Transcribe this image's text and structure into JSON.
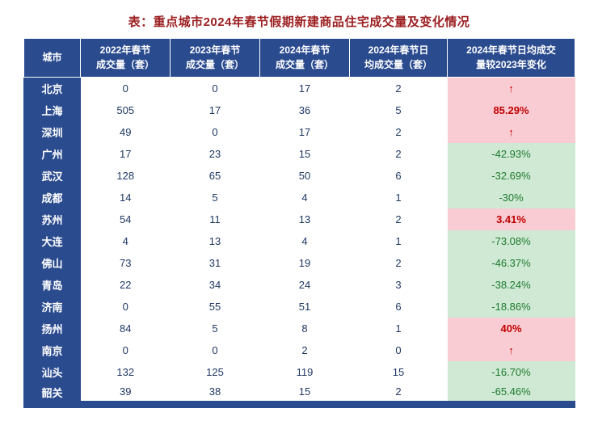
{
  "title": "表：重点城市2024年春节假期新建商品住宅成交量及变化情况",
  "colors": {
    "header_bg": "#2b4b8f",
    "pink_bg": "#f9ccd3",
    "green_bg": "#cfe9d4",
    "red_text": "#c00000",
    "green_text": "#1e7a2e",
    "data_text": "#1f3864",
    "title_color": "#9c1f21"
  },
  "chart_data": {
    "type": "table",
    "title": "表：重点城市2024年春节假期新建商品住宅成交量及变化情况",
    "columns": [
      "城市",
      "2022年春节成交量（套）",
      "2023年春节成交量（套）",
      "2024年春节成交量（套）",
      "2024年春节日均成交量（套）",
      "2024年春节日均成交量较2023年变化"
    ],
    "headers": [
      [
        "城市"
      ],
      [
        "2022年春节",
        "成交量（套）"
      ],
      [
        "2023年春节",
        "成交量（套）"
      ],
      [
        "2024年春节",
        "成交量（套）"
      ],
      [
        "2024年春节日",
        "均成交量（套）"
      ],
      [
        "2024年春节日均成交",
        "量较2023年变化"
      ]
    ],
    "rows": [
      {
        "city": "北京",
        "values": [
          "0",
          "0",
          "17",
          "2"
        ],
        "change": "↑",
        "change_style": "up"
      },
      {
        "city": "上海",
        "values": [
          "505",
          "17",
          "36",
          "5"
        ],
        "change": "85.29%",
        "change_style": "up"
      },
      {
        "city": "深圳",
        "values": [
          "49",
          "0",
          "17",
          "2"
        ],
        "change": "↑",
        "change_style": "up"
      },
      {
        "city": "广州",
        "values": [
          "17",
          "23",
          "15",
          "2"
        ],
        "change": "-42.93%",
        "change_style": "down"
      },
      {
        "city": "武汉",
        "values": [
          "128",
          "65",
          "50",
          "6"
        ],
        "change": "-32.69%",
        "change_style": "down"
      },
      {
        "city": "成都",
        "values": [
          "14",
          "5",
          "4",
          "1"
        ],
        "change": "-30%",
        "change_style": "down"
      },
      {
        "city": "苏州",
        "values": [
          "54",
          "11",
          "13",
          "2"
        ],
        "change": "3.41%",
        "change_style": "up"
      },
      {
        "city": "大连",
        "values": [
          "4",
          "13",
          "4",
          "1"
        ],
        "change": "-73.08%",
        "change_style": "down"
      },
      {
        "city": "佛山",
        "values": [
          "73",
          "31",
          "19",
          "2"
        ],
        "change": "-46.37%",
        "change_style": "down"
      },
      {
        "city": "青岛",
        "values": [
          "22",
          "34",
          "24",
          "3"
        ],
        "change": "-38.24%",
        "change_style": "down"
      },
      {
        "city": "济南",
        "values": [
          "0",
          "55",
          "51",
          "6"
        ],
        "change": "-18.86%",
        "change_style": "down"
      },
      {
        "city": "扬州",
        "values": [
          "84",
          "5",
          "8",
          "1"
        ],
        "change": "40%",
        "change_style": "up"
      },
      {
        "city": "南京",
        "values": [
          "0",
          "0",
          "2",
          "0"
        ],
        "change": "↑",
        "change_style": "up"
      },
      {
        "city": "汕头",
        "values": [
          "132",
          "125",
          "119",
          "15"
        ],
        "change": "-16.70%",
        "change_style": "down"
      },
      {
        "city": "韶关",
        "values": [
          "39",
          "38",
          "15",
          "2"
        ],
        "change": "-65.46%",
        "change_style": "down"
      }
    ]
  }
}
